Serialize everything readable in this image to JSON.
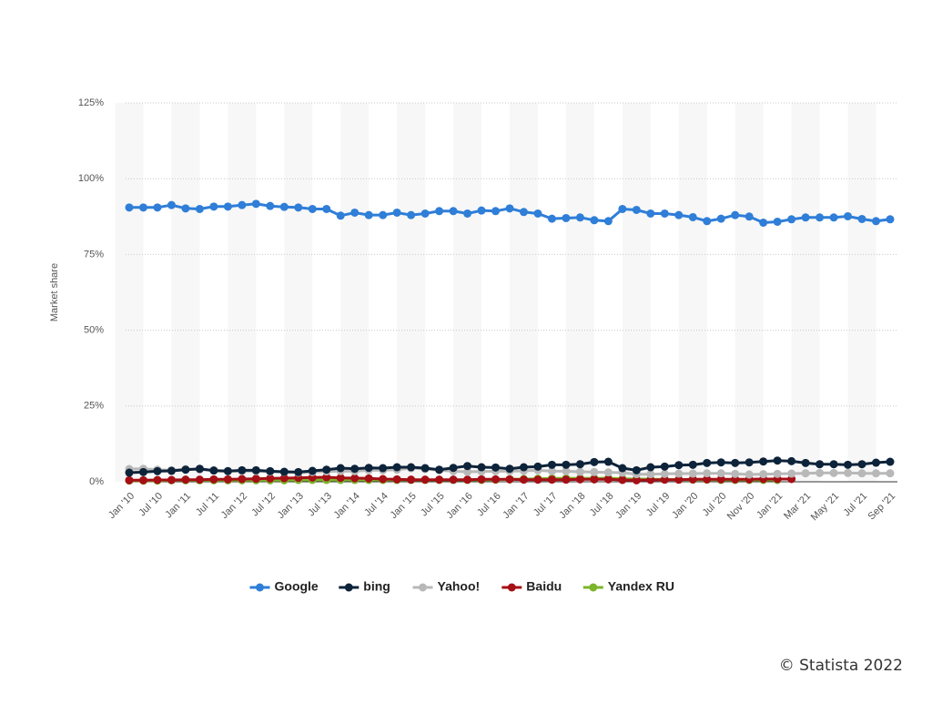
{
  "chart_data": {
    "type": "line",
    "ylabel": "Market share",
    "credit": "© Statista 2022",
    "categories": [
      "Jan '10",
      null,
      "Jul '10",
      null,
      "Jan '11",
      null,
      "Jul '11",
      null,
      "Jan '12",
      null,
      "Jul '12",
      null,
      "Jan '13",
      null,
      "Jul '13",
      null,
      "Jan '14",
      null,
      "Jul '14",
      null,
      "Jan '15",
      null,
      "Jul '15",
      null,
      "Jan '16",
      null,
      "Jul '16",
      null,
      "Jan '17",
      null,
      "Jul '17",
      null,
      "Jan '18",
      null,
      "Jul '18",
      null,
      "Jan '19",
      null,
      "Jul '19",
      null,
      "Jan '20",
      null,
      "Jul '20",
      null,
      "Nov '20",
      null,
      "Jan '21",
      null,
      "Mar '21",
      null,
      "May '21",
      null,
      "Jul '21",
      null,
      "Sep '21"
    ],
    "series": [
      {
        "name": "Google",
        "color": "#2f7ed8",
        "values": [
          90.5,
          90.5,
          90.5,
          91.3,
          90.2,
          90,
          90.8,
          90.8,
          91.3,
          91.7,
          91,
          90.7,
          90.5,
          90,
          90,
          87.8,
          88.8,
          88,
          88,
          88.8,
          88,
          88.5,
          89.3,
          89.3,
          88.5,
          89.5,
          89.3,
          90.2,
          89,
          88.5,
          86.8,
          87,
          87.2,
          86.3,
          86,
          90,
          89.7,
          88.5,
          88.5,
          88,
          87.3,
          86,
          86.8,
          88,
          87.5,
          85.5,
          85.8,
          86.6,
          87.2,
          87.2,
          87.2,
          87.6,
          86.7,
          86,
          86.6
        ]
      },
      {
        "name": "bing",
        "color": "#0d233a",
        "values": [
          3,
          3.2,
          3.5,
          3.6,
          4,
          4.3,
          3.7,
          3.5,
          3.8,
          3.8,
          3.5,
          3.3,
          3.2,
          3.6,
          4,
          4.5,
          4.3,
          4.6,
          4.5,
          4.8,
          4.8,
          4.5,
          4,
          4.6,
          5.2,
          4.8,
          4.7,
          4.3,
          4.8,
          5,
          5.6,
          5.6,
          5.8,
          6.5,
          6.6,
          4.5,
          3.8,
          4.8,
          5,
          5.5,
          5.6,
          6.2,
          6.4,
          6.2,
          6.4,
          6.7,
          7,
          6.8,
          6.2,
          5.8,
          5.8,
          5.6,
          5.8,
          6.3,
          6.6
        ]
      },
      {
        "name": "Yahoo!",
        "color": "#b8b8b8",
        "values": [
          4.2,
          4.3,
          4,
          3.8,
          4.2,
          4,
          3.8,
          3.6,
          3.5,
          3.5,
          3.3,
          3.2,
          3,
          3.2,
          3.4,
          3.5,
          3.5,
          3.8,
          3.8,
          4,
          4.5,
          4.2,
          3.8,
          3.5,
          3.3,
          3.4,
          3.5,
          3.5,
          3.6,
          3.8,
          3.5,
          3.5,
          3.3,
          3.2,
          3.1,
          3,
          2.5,
          2.5,
          2.6,
          2.7,
          2.7,
          2.8,
          2.8,
          2.6,
          2.4,
          2.5,
          2.6,
          2.7,
          2.8,
          2.9,
          2.9,
          2.9,
          2.8,
          2.8,
          2.8
        ]
      },
      {
        "name": "Baidu",
        "color": "#a50f15",
        "values": [
          0.5,
          0.5,
          0.6,
          0.6,
          0.7,
          0.7,
          0.8,
          0.8,
          0.9,
          1,
          1.1,
          1.2,
          1.3,
          1.4,
          1.5,
          1.3,
          1.2,
          1.1,
          0.9,
          0.8,
          0.7,
          0.7,
          0.7,
          0.7,
          0.7,
          0.8,
          0.8,
          0.8,
          0.7,
          0.7,
          0.7,
          0.7,
          0.8,
          0.8,
          0.8,
          0.6,
          0.5,
          0.6,
          0.7,
          0.7,
          0.8,
          0.8,
          0.8,
          0.8,
          0.8,
          0.9,
          0.9,
          0.9,
          null,
          null,
          null,
          null,
          null,
          null,
          null
        ]
      },
      {
        "name": "Yandex RU",
        "color": "#7cb42a",
        "values": [
          0.4,
          0.4,
          0.4,
          0.5,
          0.5,
          0.5,
          0.5,
          0.5,
          0.5,
          0.5,
          0.5,
          0.5,
          0.6,
          0.6,
          0.6,
          0.6,
          0.6,
          0.6,
          0.6,
          0.6,
          0.6,
          0.6,
          0.6,
          0.6,
          0.6,
          0.6,
          0.7,
          0.8,
          0.9,
          1,
          1.1,
          1.1,
          1.1,
          1.1,
          1.2,
          1,
          0.9,
          0.8,
          0.8,
          0.7,
          0.7,
          0.7,
          0.6,
          0.6,
          0.6,
          0.6,
          0.6,
          null,
          null,
          null,
          null,
          null,
          null,
          null,
          null
        ]
      }
    ],
    "ylim": [
      0,
      125
    ],
    "yticks": [
      {
        "value": 0,
        "label": "0%"
      },
      {
        "value": 25,
        "label": "25%"
      },
      {
        "value": 50,
        "label": "50%"
      },
      {
        "value": 75,
        "label": "75%"
      },
      {
        "value": 100,
        "label": "100%"
      },
      {
        "value": 125,
        "label": "125%"
      }
    ],
    "grid": true,
    "legend": "bottom"
  }
}
